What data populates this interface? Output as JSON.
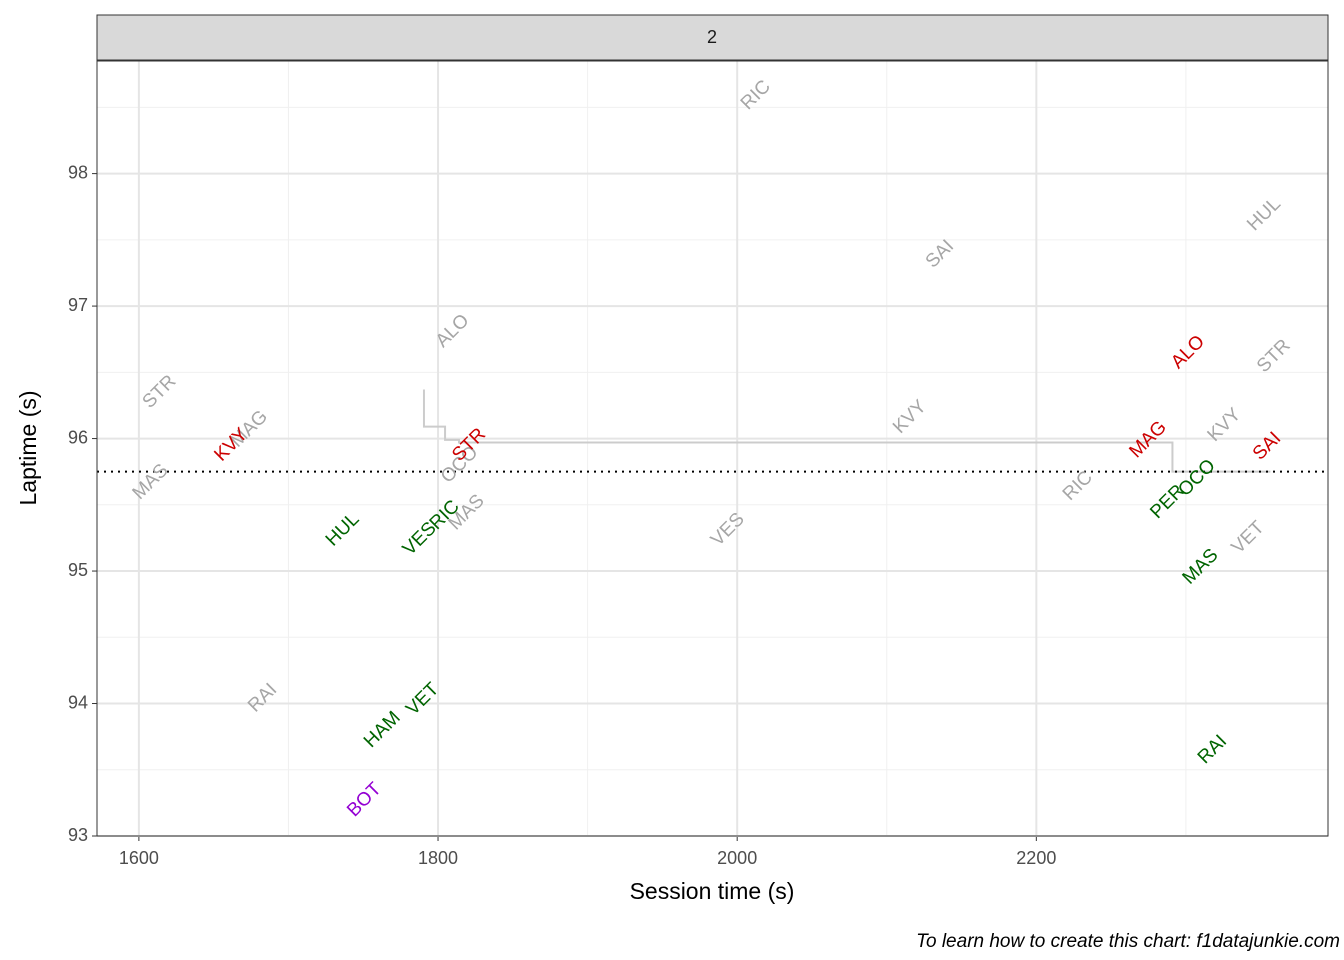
{
  "chart_data": {
    "type": "scatter",
    "facet": "2",
    "x_label": "Session time (s)",
    "y_label": "Laptime (s)",
    "caption": "To learn how to create this chart: f1datajunkie.com",
    "xlim": [
      1572,
      2395
    ],
    "ylim": [
      93,
      98.85
    ],
    "xticks": [
      1600,
      1800,
      2000,
      2200
    ],
    "yticks": [
      93,
      94,
      95,
      96,
      97,
      98
    ],
    "xminor": [
      1700,
      1900,
      2100,
      2300
    ],
    "yminor": [
      93.5,
      94.5,
      95.5,
      96.5,
      97.5,
      98.5
    ],
    "grid": true,
    "series": [
      {
        "color": "#a6a6a6",
        "labels": [
          "RIC",
          "SAI",
          "HUL",
          "ALO",
          "STR",
          "MAG",
          "MAS",
          "OCO",
          "MAS",
          "KVY",
          "RIC",
          "KVY",
          "STR",
          "VES",
          "VET",
          "RAI"
        ],
        "x": [
          2012.7,
          2135.8,
          2352.5,
          1810,
          1614,
          1674,
          1608,
          1814.7,
          1819.4,
          2115.7,
          2228,
          2326,
          2359,
          1994,
          2341.8,
          1683
        ],
        "values": [
          98.59,
          97.39,
          97.69,
          96.81,
          96.35,
          96.07,
          95.67,
          95.8,
          95.44,
          96.16,
          95.64,
          96.1,
          96.62,
          95.31,
          95.25,
          94.04
        ]
      },
      {
        "color": "#cc0000",
        "labels": [
          "KVY",
          "STR",
          "MAG",
          "ALO",
          "SAI"
        ],
        "x": [
          1662,
          1821,
          2275,
          2301.7,
          2354.5
        ],
        "values": [
          95.95,
          95.95,
          95.99,
          96.65,
          95.94
        ]
      },
      {
        "color": "#006400",
        "labels": [
          "HUL",
          "VES",
          "RIC",
          "HAM",
          "VET",
          "PER",
          "OCO",
          "MAS",
          "RAI"
        ],
        "x": [
          1736.5,
          1788,
          1804.7,
          1763,
          1790,
          2288,
          2307.7,
          2310,
          2318
        ],
        "values": [
          95.31,
          95.24,
          95.42,
          93.8,
          94.03,
          95.52,
          95.7,
          95.03,
          93.65
        ]
      },
      {
        "color": "#9400d3",
        "labels": [
          "BOT"
        ],
        "x": [
          1751
        ],
        "values": [
          93.27
        ]
      }
    ],
    "step_line": {
      "color": "#cccccc",
      "x": [
        1790.6,
        1790.6,
        1804.7,
        1804.7,
        1814,
        1814,
        2291,
        2291,
        2356.5
      ],
      "values": [
        96.37,
        96.09,
        96.09,
        95.99,
        95.99,
        95.97,
        95.97,
        95.75,
        95.75
      ]
    },
    "hline": {
      "value": 95.75,
      "color": "#000000"
    }
  }
}
